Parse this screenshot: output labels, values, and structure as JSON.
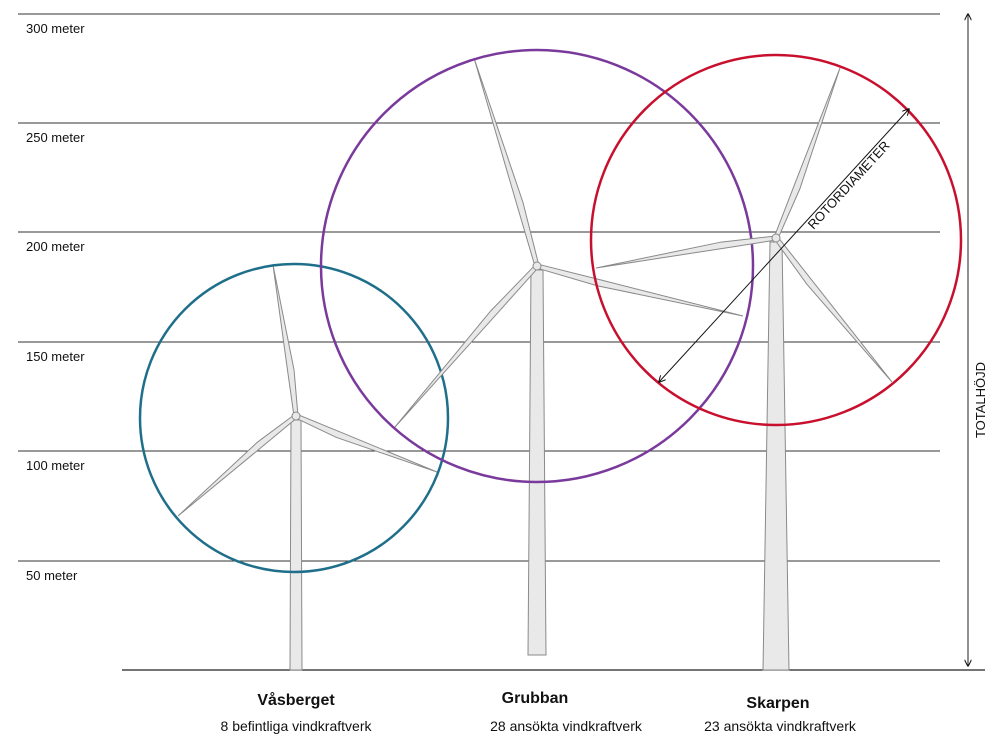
{
  "height_labels": [
    "300 meter",
    "250 meter",
    "200 meter",
    "150 meter",
    "100 meter",
    "50 meter"
  ],
  "axis_label": "TOTALHÖJD",
  "rotor_label": "ROTORDIAMETER",
  "turbines": [
    {
      "name": "Våsberget",
      "description": "8 befintliga vindkraftverk"
    },
    {
      "name": "Grubban",
      "description": "28 ansökta vindkraftverk"
    },
    {
      "name": "Skarpen",
      "description": "23 ansökta vindkraftverk"
    }
  ]
}
